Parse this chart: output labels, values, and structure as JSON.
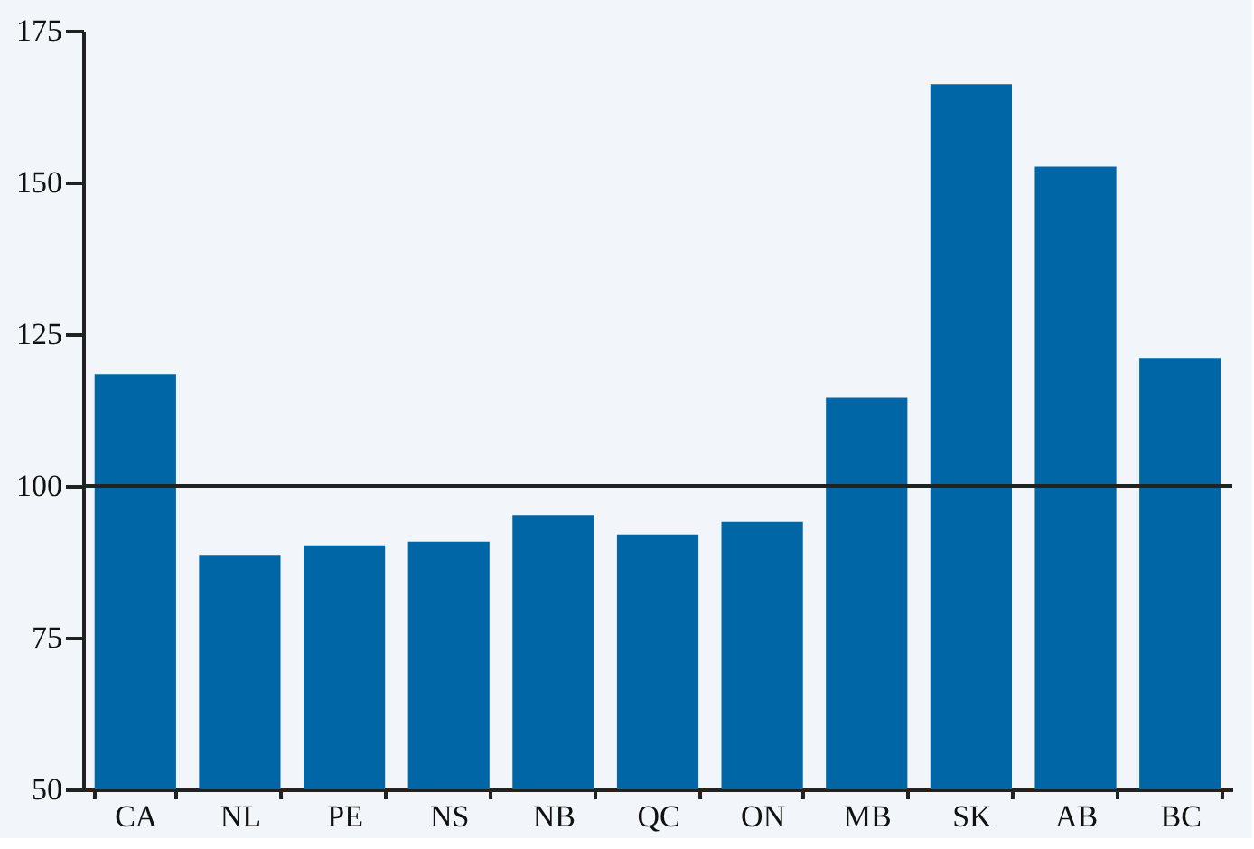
{
  "chart_data": {
    "type": "bar",
    "categories": [
      "CA",
      "NL",
      "PE",
      "NS",
      "NB",
      "QC",
      "ON",
      "MB",
      "SK",
      "AB",
      "BC"
    ],
    "values": [
      118.4,
      88.5,
      90.2,
      90.8,
      95.2,
      92.0,
      94.1,
      114.5,
      166.2,
      152.6,
      121.1
    ],
    "color": "#0066a6",
    "ylim": [
      50,
      175
    ],
    "yticks": [
      50,
      75,
      100,
      125,
      150,
      175
    ],
    "grid": false,
    "ref_lines": [
      {
        "axis": "y",
        "value": 100,
        "color": "#222222"
      }
    ]
  }
}
